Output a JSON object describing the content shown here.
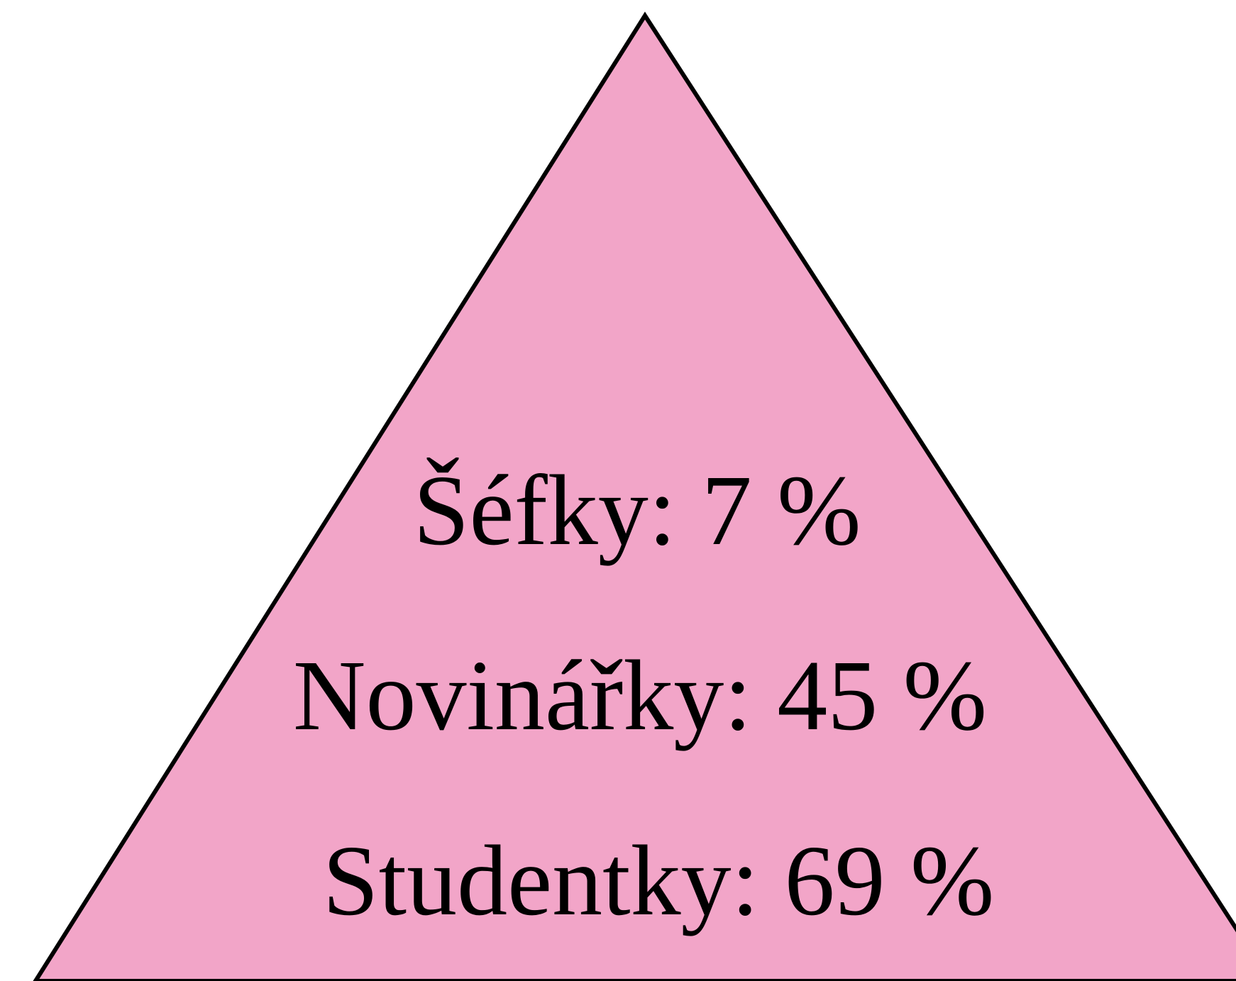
{
  "items": [
    {
      "label": "Šéfky: 7 %"
    },
    {
      "label": "Novinářky: 45 %"
    },
    {
      "label": "Studentky: 69 %"
    }
  ]
}
